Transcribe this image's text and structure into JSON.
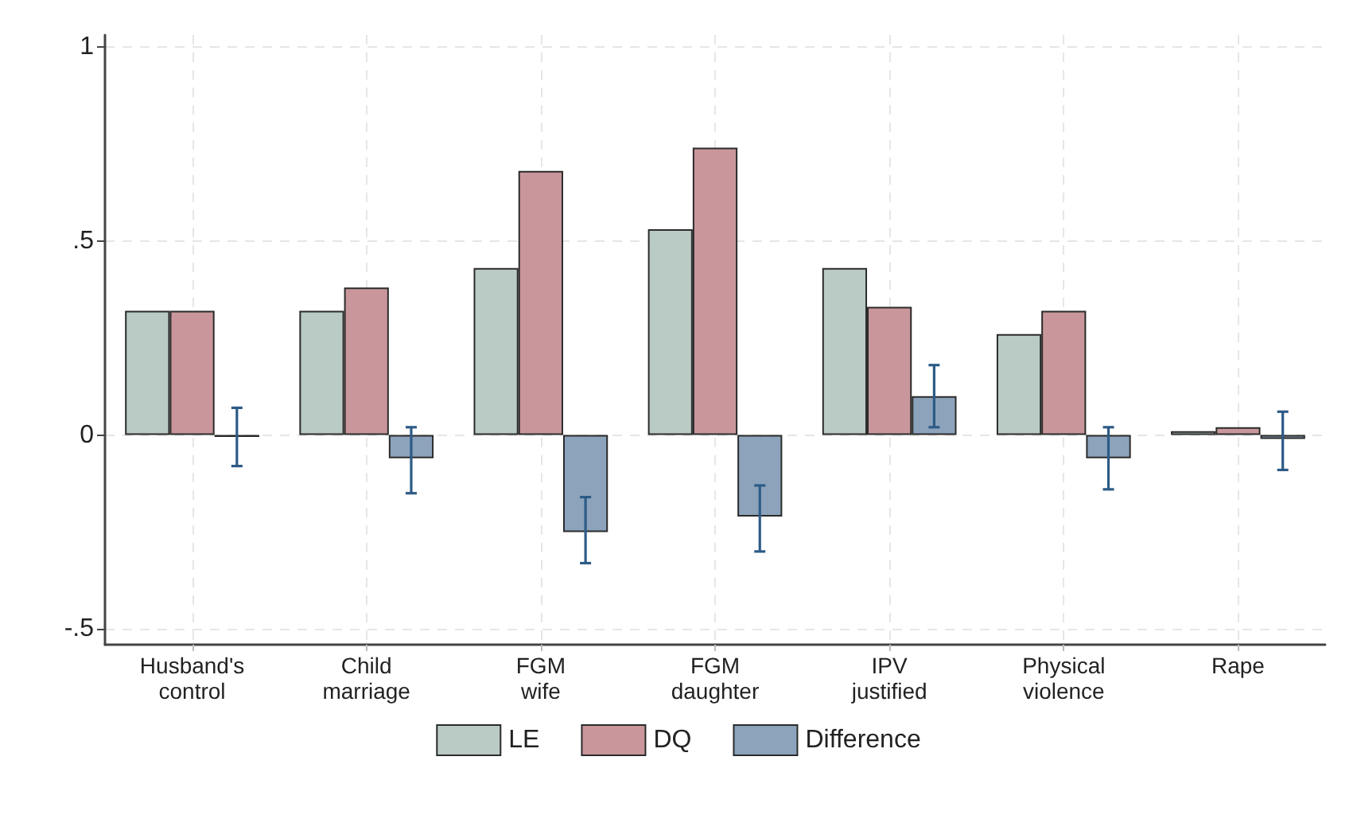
{
  "chart_data": {
    "type": "bar",
    "categories": [
      "Husband's control",
      "Child marriage",
      "FGM wife",
      "FGM daughter",
      "IPV justified",
      "Physical violence",
      "Rape"
    ],
    "series": [
      {
        "name": "LE",
        "color": "#b9cbc4",
        "values": [
          0.32,
          0.32,
          0.43,
          0.53,
          0.43,
          0.26,
          0.01
        ]
      },
      {
        "name": "DQ",
        "color": "#c9979b",
        "values": [
          0.32,
          0.38,
          0.68,
          0.74,
          0.33,
          0.32,
          0.02
        ]
      },
      {
        "name": "Difference",
        "color": "#8ca3bb",
        "values": [
          -0.005,
          -0.06,
          -0.25,
          -0.21,
          0.1,
          -0.06,
          -0.01
        ],
        "errors": [
          [
            -0.08,
            0.07
          ],
          [
            -0.15,
            0.02
          ],
          [
            -0.33,
            -0.16
          ],
          [
            -0.3,
            -0.13
          ],
          [
            0.02,
            0.18
          ],
          [
            -0.14,
            0.02
          ],
          [
            -0.09,
            0.06
          ]
        ]
      }
    ],
    "ylim": [
      -0.54,
      1.03
    ],
    "yticks": [
      {
        "value": -0.5,
        "label": "-.5"
      },
      0,
      {
        "value": 0.5,
        "label": ".5"
      },
      1
    ],
    "grid": true,
    "legend": "bottom"
  }
}
